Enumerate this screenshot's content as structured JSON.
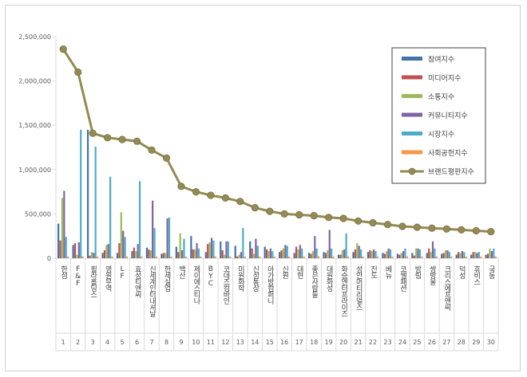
{
  "chart_data": {
    "type": "bar",
    "title": "",
    "xlabel": "",
    "ylabel": "",
    "ylim": [
      0,
      2500000
    ],
    "yticks": [
      "0",
      "500,000",
      "1,000,000",
      "1,500,000",
      "2,000,000",
      "2,500,000"
    ],
    "grid": false,
    "legend_position": "top-right",
    "categories": [
      "한섬",
      "F&F",
      "휠라홀딩스",
      "영원무역",
      "LF",
      "효성티앤씨",
      "신세계인터내셔날",
      "한세실업",
      "백산",
      "제이에스티나",
      "BYC",
      "코데즈컴바인",
      "미원화학",
      "신성통상",
      "아가방컴퍼니",
      "신원",
      "대현",
      "좋은사람들",
      "대원화성",
      "화승엔터프라이즈",
      "성안머티리얼스",
      "진도",
      "베뉴",
      "코웰패션",
      "방림",
      "쌍방울",
      "크리스에프앤씨",
      "덕성",
      "휴비스",
      "국동"
    ],
    "ranks": [
      "1",
      "2",
      "3",
      "4",
      "5",
      "6",
      "7",
      "8",
      "9",
      "10",
      "11",
      "12",
      "13",
      "14",
      "15",
      "16",
      "17",
      "18",
      "19",
      "20",
      "21",
      "22",
      "23",
      "24",
      "25",
      "26",
      "27",
      "28",
      "29",
      "30"
    ],
    "series": [
      {
        "name": "참여지수",
        "kind": "bar",
        "color": "#4472a8",
        "values": [
          390000,
          150000,
          1450000,
          60000,
          60000,
          80000,
          120000,
          50000,
          130000,
          250000,
          70000,
          190000,
          140000,
          190000,
          130000,
          70000,
          60000,
          60000,
          70000,
          40000,
          70000,
          70000,
          60000,
          50000,
          60000,
          60000,
          50000,
          40000,
          40000,
          40000
        ]
      },
      {
        "name": "미디어지수",
        "kind": "bar",
        "color": "#c0504d",
        "values": [
          200000,
          170000,
          30000,
          90000,
          170000,
          120000,
          100000,
          60000,
          70000,
          100000,
          160000,
          90000,
          20000,
          110000,
          100000,
          90000,
          130000,
          50000,
          60000,
          40000,
          100000,
          90000,
          50000,
          40000,
          30000,
          110000,
          60000,
          70000,
          70000,
          50000
        ]
      },
      {
        "name": "소통지수",
        "kind": "bar",
        "color": "#9bbb59",
        "values": [
          680000,
          40000,
          70000,
          150000,
          520000,
          80000,
          90000,
          60000,
          280000,
          100000,
          180000,
          40000,
          40000,
          50000,
          80000,
          110000,
          100000,
          80000,
          90000,
          90000,
          170000,
          80000,
          80000,
          60000,
          110000,
          70000,
          90000,
          60000,
          70000,
          110000
        ]
      },
      {
        "name": "커뮤니티지수",
        "kind": "bar",
        "color": "#8064a2",
        "values": [
          760000,
          180000,
          60000,
          160000,
          310000,
          160000,
          650000,
          450000,
          90000,
          170000,
          230000,
          190000,
          70000,
          220000,
          110000,
          150000,
          150000,
          250000,
          320000,
          100000,
          140000,
          100000,
          110000,
          80000,
          110000,
          190000,
          90000,
          80000,
          60000,
          80000
        ]
      },
      {
        "name": "시장지수",
        "kind": "bar",
        "color": "#4bacc6",
        "values": [
          240000,
          1450000,
          1260000,
          920000,
          240000,
          870000,
          340000,
          460000,
          220000,
          110000,
          200000,
          190000,
          340000,
          140000,
          80000,
          140000,
          110000,
          110000,
          110000,
          280000,
          100000,
          80000,
          100000,
          110000,
          100000,
          110000,
          70000,
          70000,
          70000,
          110000
        ]
      },
      {
        "name": "사회공헌지수",
        "kind": "bar",
        "color": "#f79646",
        "values": [
          20000,
          20000,
          20000,
          20000,
          20000,
          20000,
          20000,
          20000,
          20000,
          20000,
          20000,
          20000,
          20000,
          20000,
          20000,
          20000,
          20000,
          20000,
          20000,
          20000,
          20000,
          20000,
          20000,
          20000,
          20000,
          20000,
          20000,
          20000,
          20000,
          20000
        ]
      },
      {
        "name": "브랜드평판지수",
        "kind": "line",
        "color": "#948a54",
        "values": [
          2360000,
          2100000,
          1410000,
          1360000,
          1340000,
          1320000,
          1220000,
          1130000,
          810000,
          750000,
          710000,
          680000,
          640000,
          570000,
          530000,
          500000,
          490000,
          480000,
          460000,
          450000,
          420000,
          400000,
          380000,
          360000,
          350000,
          340000,
          330000,
          320000,
          310000,
          300000
        ]
      }
    ]
  }
}
